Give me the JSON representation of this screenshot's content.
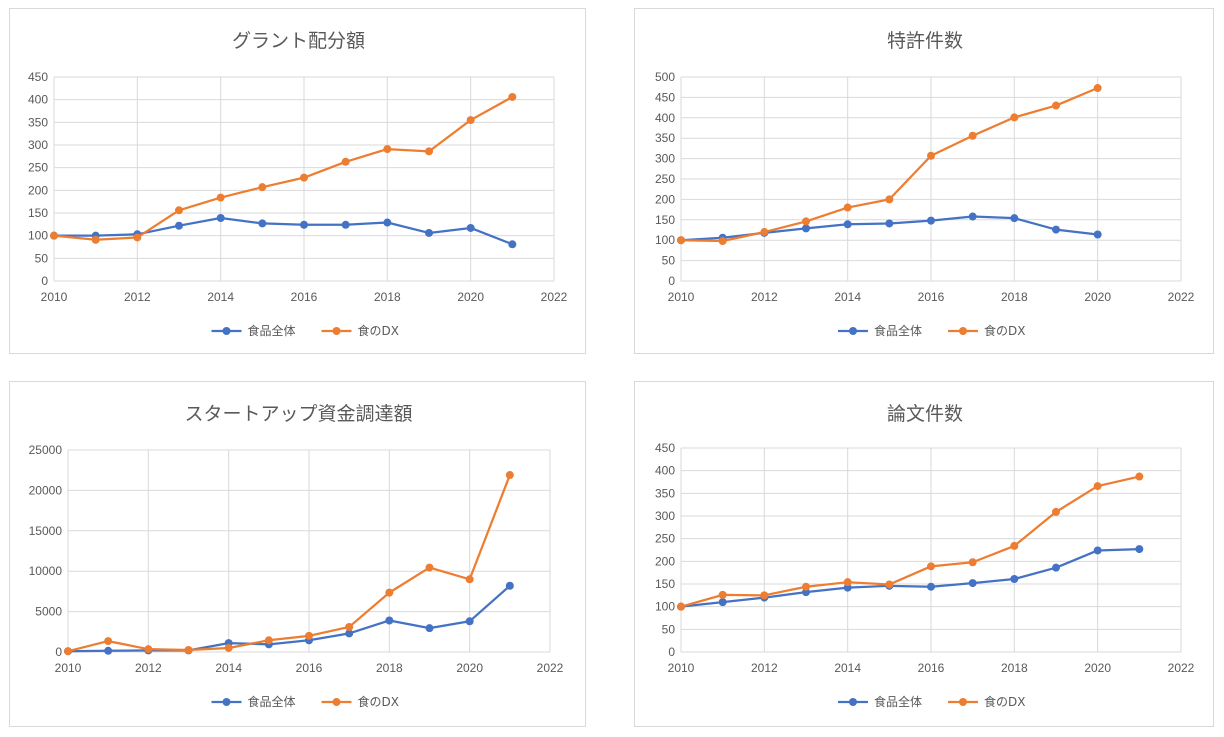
{
  "colors": {
    "series_all": "#4472c4",
    "series_dx": "#ed7d31",
    "grid": "#d9d9d9",
    "text": "#595959"
  },
  "chart_data": [
    {
      "type": "line",
      "title": "グラント配分額",
      "xlabel": "",
      "ylabel": "",
      "xlim": [
        2010,
        2022
      ],
      "ylim": [
        0,
        450
      ],
      "xticks": [
        "2010",
        "2012",
        "2014",
        "2016",
        "2018",
        "2020",
        "2022"
      ],
      "yticks": [
        "0",
        "50",
        "100",
        "150",
        "200",
        "250",
        "300",
        "350",
        "400",
        "450"
      ],
      "x": [
        2010,
        2011,
        2012,
        2013,
        2014,
        2015,
        2016,
        2017,
        2018,
        2019,
        2020,
        2021
      ],
      "series": [
        {
          "name": "食品全体",
          "values": [
            100,
            100,
            103,
            122,
            139,
            127,
            124,
            124,
            129,
            106,
            117,
            81
          ]
        },
        {
          "name": "食のDX",
          "values": [
            100,
            91,
            96,
            156,
            184,
            207,
            228,
            263,
            291,
            286,
            355,
            406
          ]
        }
      ],
      "legend": "bottom",
      "grid": "both"
    },
    {
      "type": "line",
      "title": "特許件数",
      "xlabel": "",
      "ylabel": "",
      "xlim": [
        2010,
        2022
      ],
      "ylim": [
        0,
        500
      ],
      "xticks": [
        "2010",
        "2012",
        "2014",
        "2016",
        "2018",
        "2020",
        "2022"
      ],
      "yticks": [
        "0",
        "50",
        "100",
        "150",
        "200",
        "250",
        "300",
        "350",
        "400",
        "450",
        "500"
      ],
      "x": [
        2010,
        2011,
        2012,
        2013,
        2014,
        2015,
        2016,
        2017,
        2018,
        2019,
        2020
      ],
      "series": [
        {
          "name": "食品全体",
          "values": [
            100,
            106,
            118,
            129,
            139,
            141,
            148,
            158,
            154,
            126,
            114
          ]
        },
        {
          "name": "食のDX",
          "values": [
            100,
            98,
            120,
            146,
            180,
            200,
            307,
            356,
            401,
            430,
            473
          ]
        }
      ],
      "legend": "bottom",
      "grid": "both"
    },
    {
      "type": "line",
      "title": "スタートアップ資金調達額",
      "xlabel": "",
      "ylabel": "",
      "xlim": [
        2010,
        2022
      ],
      "ylim": [
        0,
        25000
      ],
      "xticks": [
        "2010",
        "2012",
        "2014",
        "2016",
        "2018",
        "2020",
        "2022"
      ],
      "yticks": [
        "0",
        "5000",
        "10000",
        "15000",
        "20000",
        "25000"
      ],
      "x": [
        2010,
        2011,
        2012,
        2013,
        2014,
        2015,
        2016,
        2017,
        2018,
        2019,
        2020,
        2021
      ],
      "series": [
        {
          "name": "食品全体",
          "values": [
            100,
            150,
            200,
            200,
            1100,
            950,
            1450,
            2300,
            3900,
            2950,
            3800,
            8200
          ]
        },
        {
          "name": "食のDX",
          "values": [
            100,
            1350,
            350,
            250,
            500,
            1450,
            2000,
            3100,
            7350,
            10450,
            9000,
            21900
          ]
        }
      ],
      "legend": "bottom",
      "grid": "both"
    },
    {
      "type": "line",
      "title": "論文件数",
      "xlabel": "",
      "ylabel": "",
      "xlim": [
        2010,
        2022
      ],
      "ylim": [
        0,
        450
      ],
      "xticks": [
        "2010",
        "2012",
        "2014",
        "2016",
        "2018",
        "2020",
        "2022"
      ],
      "yticks": [
        "0",
        "50",
        "100",
        "150",
        "200",
        "250",
        "300",
        "350",
        "400",
        "450"
      ],
      "x": [
        2010,
        2011,
        2012,
        2013,
        2014,
        2015,
        2016,
        2017,
        2018,
        2019,
        2020,
        2021
      ],
      "series": [
        {
          "name": "食品全体",
          "values": [
            100,
            110,
            120,
            132,
            142,
            146,
            144,
            152,
            161,
            186,
            224,
            227
          ]
        },
        {
          "name": "食のDX",
          "values": [
            100,
            126,
            125,
            144,
            154,
            149,
            189,
            198,
            234,
            309,
            366,
            387
          ]
        }
      ],
      "legend": "bottom",
      "grid": "both"
    }
  ]
}
